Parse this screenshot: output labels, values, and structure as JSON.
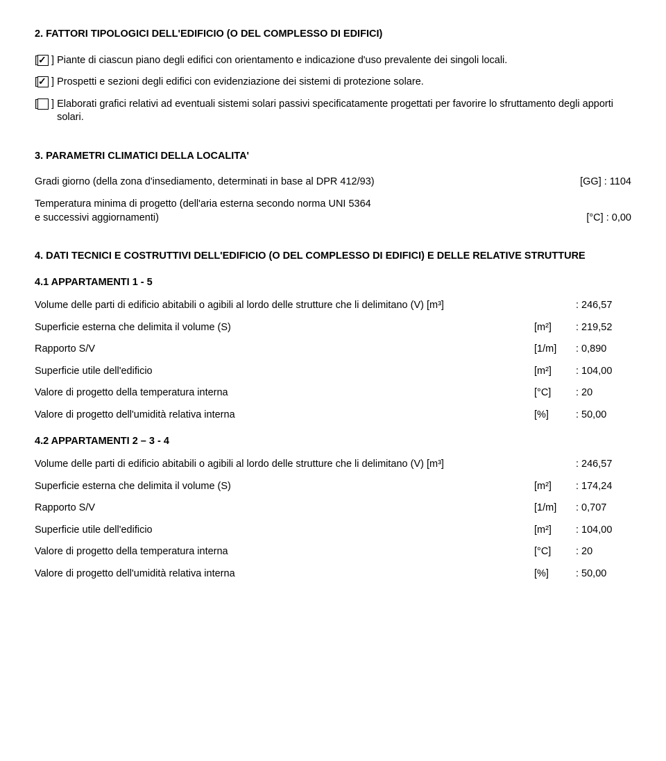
{
  "section2": {
    "heading": "2. FATTORI TIPOLOGICI DELL'EDIFICIO (O DEL COMPLESSO DI EDIFICI)",
    "items": [
      {
        "checked": true,
        "text": "Piante di ciascun piano degli edifici con orientamento e indicazione d'uso prevalente dei singoli locali."
      },
      {
        "checked": true,
        "text": "Prospetti e sezioni degli edifici con evidenziazione dei sistemi di protezione solare."
      },
      {
        "checked": false,
        "text": "Elaborati grafici relativi ad eventuali sistemi solari passivi specificatamente progettati per favorire lo sfruttamento degli apporti solari."
      }
    ]
  },
  "section3": {
    "heading": "3. PARAMETRI CLIMATICI DELLA LOCALITA'",
    "line1_label": "Gradi giorno (della zona d'insediamento, determinati in base al DPR 412/93)",
    "line1_unit": "[GG] : 1104",
    "line2a": "Temperatura minima di progetto (dell'aria esterna secondo norma UNI 5364",
    "line2b_label": "e successivi aggiornamenti)",
    "line2b_unit": "[°C] :  0,00"
  },
  "section4": {
    "heading": "4. DATI TECNICI E COSTRUTTIVI DELL'EDIFICIO (O DEL COMPLESSO DI EDIFICI) E DELLE RELATIVE STRUTTURE",
    "sub41": {
      "heading": "4.1 APPARTAMENTI 1 - 5",
      "rows": [
        {
          "label": "Volume delle parti di edificio abitabili o agibili al lordo delle strutture che li delimitano (V) [m³]",
          "unit": "",
          "value": ": 246,57"
        },
        {
          "label": "Superficie esterna che delimita il volume (S)",
          "unit": "[m²]",
          "value": ": 219,52"
        },
        {
          "label": "Rapporto S/V",
          "unit": "[1/m]",
          "value": ": 0,890"
        },
        {
          "label": "Superficie utile dell'edificio",
          "unit": "[m²]",
          "value": ": 104,00"
        },
        {
          "label": "Valore di progetto della temperatura interna",
          "unit": "[°C]",
          "value": ": 20"
        },
        {
          "label": "Valore di progetto dell'umidità relativa interna",
          "unit": "[%]",
          "value": ": 50,00"
        }
      ]
    },
    "sub42": {
      "heading": "4.2 APPARTAMENTI 2 – 3 - 4",
      "rows": [
        {
          "label": "Volume delle parti di edificio abitabili o agibili al lordo delle strutture che li delimitano (V) [m³]",
          "unit": "",
          "value": ": 246,57"
        },
        {
          "label": "Superficie esterna che delimita il volume (S)",
          "unit": "[m²]",
          "value": ": 174,24"
        },
        {
          "label": "Rapporto S/V",
          "unit": "[1/m]",
          "value": ": 0,707"
        },
        {
          "label": "Superficie utile dell'edificio",
          "unit": "[m²]",
          "value": ": 104,00"
        },
        {
          "label": "Valore di progetto della temperatura interna",
          "unit": "[°C]",
          "value": ": 20"
        },
        {
          "label": "Valore di progetto dell'umidità relativa interna",
          "unit": "[%]",
          "value": ": 50,00"
        }
      ]
    }
  }
}
